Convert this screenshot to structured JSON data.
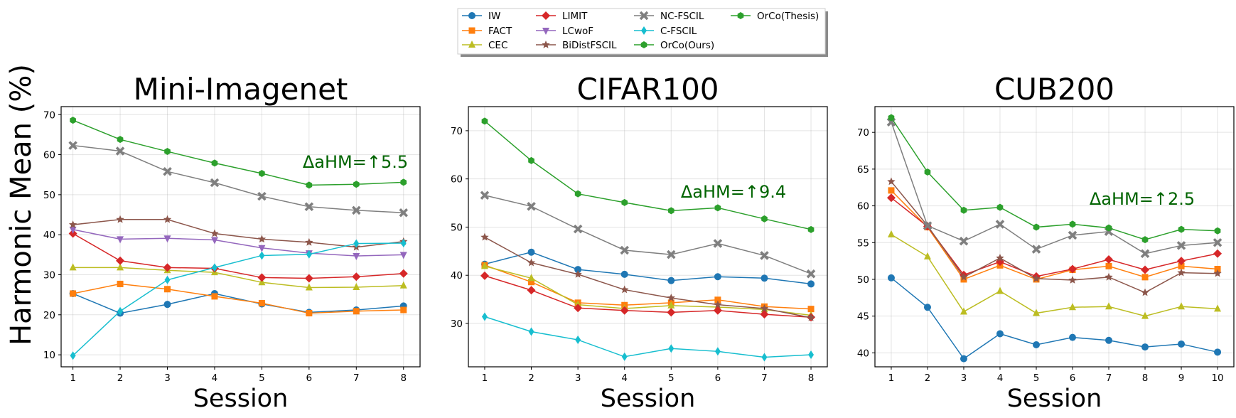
{
  "figure": {
    "ylabel": "Harmonic Mean (%)"
  },
  "legend": {
    "entries": [
      {
        "name": "IW",
        "color": "#1f77b4",
        "marker": "circle"
      },
      {
        "name": "FACT",
        "color": "#ff7f0e",
        "marker": "square"
      },
      {
        "name": "CEC",
        "color": "#bcbd22",
        "marker": "triangle-up"
      },
      {
        "name": "LIMIT",
        "color": "#d62728",
        "marker": "diamond"
      },
      {
        "name": "LCwoF",
        "color": "#9467bd",
        "marker": "triangle-down"
      },
      {
        "name": "BiDistFSCIL",
        "color": "#8c564b",
        "marker": "star"
      },
      {
        "name": "NC-FSCIL",
        "color": "#7f7f7f",
        "marker": "x"
      },
      {
        "name": "C-FSCIL",
        "color": "#17becf",
        "marker": "thin-diamond"
      },
      {
        "name": "OrCo(Ours)",
        "color": "#2ca02c",
        "marker": "hexagon"
      },
      {
        "name": "OrCo(Thesis)",
        "color": "#2ca02c",
        "marker": "hexagon"
      }
    ]
  },
  "chart_data": [
    {
      "type": "line",
      "title": "Mini-Imagenet",
      "xlabel": "Session",
      "ylabel": "Harmonic Mean (%)",
      "x": [
        1,
        2,
        3,
        4,
        5,
        6,
        7,
        8
      ],
      "xlim": [
        0.75,
        8.35
      ],
      "ylim": [
        7,
        72
      ],
      "yticks": [
        10,
        20,
        30,
        40,
        50,
        60,
        70
      ],
      "grid": true,
      "annotation": "ΔaHM=↑5.5",
      "series": [
        {
          "name": "IW",
          "values": [
            25.3,
            20.4,
            22.6,
            25.3,
            22.7,
            20.6,
            21.2,
            22.2
          ]
        },
        {
          "name": "FACT",
          "values": [
            25.3,
            27.7,
            26.4,
            24.6,
            22.9,
            20.4,
            20.9,
            21.2
          ]
        },
        {
          "name": "CEC",
          "values": [
            31.8,
            31.8,
            31.1,
            30.6,
            28.1,
            26.8,
            26.9,
            27.3
          ]
        },
        {
          "name": "LIMIT",
          "values": [
            40.3,
            33.5,
            31.8,
            31.6,
            29.3,
            29.1,
            29.5,
            30.3
          ]
        },
        {
          "name": "LCwoF",
          "values": [
            41.3,
            38.9,
            39.1,
            38.7,
            36.7,
            35.4,
            34.7,
            35.0
          ]
        },
        {
          "name": "BiDistFSCIL",
          "values": [
            42.5,
            43.8,
            43.8,
            40.3,
            38.9,
            38.1,
            36.9,
            38.3
          ]
        },
        {
          "name": "NC-FSCIL",
          "values": [
            62.3,
            60.9,
            55.8,
            53.0,
            49.6,
            47.0,
            46.1,
            45.5
          ]
        },
        {
          "name": "C-FSCIL",
          "values": [
            9.8,
            20.9,
            28.7,
            31.8,
            34.8,
            35.1,
            37.8,
            37.9
          ]
        },
        {
          "name": "OrCo(Ours)",
          "values": [
            68.6,
            63.8,
            60.8,
            57.9,
            55.3,
            52.4,
            52.6,
            53.1
          ]
        }
      ]
    },
    {
      "type": "line",
      "title": "CIFAR100",
      "xlabel": "Session",
      "ylabel": "",
      "x": [
        1,
        2,
        3,
        4,
        5,
        6,
        7,
        8
      ],
      "xlim": [
        0.65,
        8.35
      ],
      "ylim": [
        21,
        75
      ],
      "yticks": [
        30,
        40,
        50,
        60,
        70
      ],
      "grid": true,
      "annotation": "ΔaHM=↑9.4",
      "series": [
        {
          "name": "IW",
          "values": [
            42.3,
            44.8,
            41.2,
            40.2,
            38.9,
            39.7,
            39.4,
            38.2
          ]
        },
        {
          "name": "FACT",
          "values": [
            42.1,
            38.6,
            34.3,
            33.8,
            34.3,
            34.9,
            33.5,
            33.0
          ]
        },
        {
          "name": "CEC",
          "values": [
            41.9,
            39.4,
            33.9,
            33.1,
            33.7,
            33.4,
            32.9,
            31.7
          ]
        },
        {
          "name": "LIMIT",
          "values": [
            39.9,
            36.9,
            33.2,
            32.7,
            32.3,
            32.7,
            31.9,
            31.3
          ]
        },
        {
          "name": "BiDistFSCIL",
          "values": [
            47.9,
            42.6,
            40.2,
            37.0,
            35.3,
            33.9,
            33.1,
            31.2
          ]
        },
        {
          "name": "NC-FSCIL",
          "values": [
            56.6,
            54.3,
            49.6,
            45.2,
            44.3,
            46.6,
            44.1,
            40.3
          ]
        },
        {
          "name": "C-FSCIL",
          "values": [
            31.4,
            28.3,
            26.6,
            23.1,
            24.8,
            24.2,
            23.0,
            23.5
          ]
        },
        {
          "name": "OrCo(Ours)",
          "values": [
            72.0,
            63.8,
            56.9,
            55.1,
            53.4,
            54.0,
            51.7,
            49.5
          ]
        }
      ]
    },
    {
      "type": "line",
      "title": "CUB200",
      "xlabel": "Session",
      "ylabel": "",
      "x": [
        1,
        2,
        3,
        4,
        5,
        6,
        7,
        8,
        9,
        10
      ],
      "xlim": [
        0.55,
        10.45
      ],
      "ylim": [
        38.1,
        73.5
      ],
      "yticks": [
        40,
        45,
        50,
        55,
        60,
        65,
        70
      ],
      "grid": true,
      "annotation": "ΔaHM=↑2.5",
      "series": [
        {
          "name": "IW",
          "values": [
            50.2,
            46.2,
            39.2,
            42.6,
            41.1,
            42.1,
            41.7,
            40.8,
            41.2,
            40.1
          ]
        },
        {
          "name": "FACT",
          "values": [
            62.1,
            57.1,
            50.0,
            51.9,
            50.0,
            51.3,
            51.8,
            50.3,
            51.8,
            51.4
          ]
        },
        {
          "name": "CEC",
          "values": [
            56.1,
            53.1,
            45.6,
            48.4,
            45.4,
            46.2,
            46.3,
            45.0,
            46.3,
            46.0
          ]
        },
        {
          "name": "LIMIT",
          "values": [
            61.1,
            57.2,
            50.6,
            52.4,
            50.4,
            51.4,
            52.7,
            51.3,
            52.5,
            53.5
          ]
        },
        {
          "name": "BiDistFSCIL",
          "values": [
            63.3,
            57.3,
            50.3,
            52.9,
            50.1,
            49.9,
            50.3,
            48.2,
            50.9,
            50.8
          ]
        },
        {
          "name": "NC-FSCIL",
          "values": [
            71.4,
            57.3,
            55.2,
            57.5,
            54.1,
            56.0,
            56.5,
            53.5,
            54.6,
            55.0
          ]
        },
        {
          "name": "OrCo(Ours)",
          "values": [
            72.0,
            64.6,
            59.4,
            59.8,
            57.1,
            57.5,
            57.0,
            55.4,
            56.8,
            56.6
          ]
        }
      ]
    }
  ]
}
